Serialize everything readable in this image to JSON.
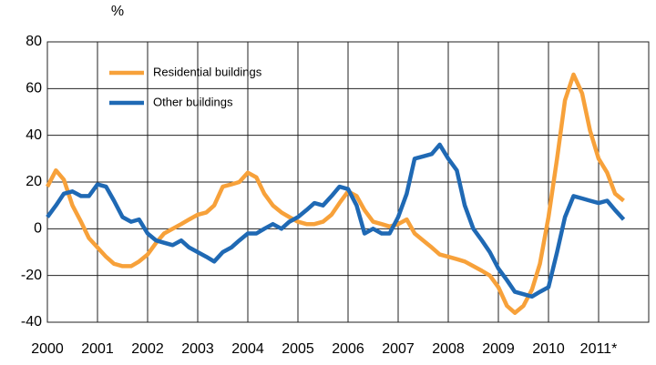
{
  "chart_data": {
    "type": "line",
    "y_label": "%",
    "x": [
      2000,
      2000.17,
      2000.33,
      2000.5,
      2000.67,
      2000.83,
      2001,
      2001.17,
      2001.33,
      2001.5,
      2001.67,
      2001.83,
      2002,
      2002.17,
      2002.33,
      2002.5,
      2002.67,
      2002.83,
      2003,
      2003.17,
      2003.33,
      2003.5,
      2003.67,
      2003.83,
      2004,
      2004.17,
      2004.33,
      2004.5,
      2004.67,
      2004.83,
      2005,
      2005.17,
      2005.33,
      2005.5,
      2005.67,
      2005.83,
      2006,
      2006.17,
      2006.33,
      2006.5,
      2006.67,
      2006.83,
      2007,
      2007.17,
      2007.33,
      2007.5,
      2007.67,
      2007.83,
      2008,
      2008.17,
      2008.33,
      2008.5,
      2008.67,
      2008.83,
      2009,
      2009.17,
      2009.33,
      2009.5,
      2009.67,
      2009.83,
      2010,
      2010.17,
      2010.33,
      2010.5,
      2010.67,
      2010.83,
      2011,
      2011.17,
      2011.33,
      2011.5
    ],
    "series": [
      {
        "name": "Residential buildings",
        "color": "#f7a13a",
        "values": [
          18,
          25,
          21,
          10,
          3,
          -4,
          -8,
          -12,
          -15,
          -16,
          -16,
          -14,
          -11,
          -6,
          -2,
          0,
          2,
          4,
          6,
          7,
          10,
          18,
          19,
          20,
          24,
          22,
          15,
          10,
          7,
          5,
          3,
          2,
          2,
          3,
          6,
          11,
          16,
          14,
          8,
          3,
          2,
          1,
          2,
          4,
          -2,
          -5,
          -8,
          -11,
          -12,
          -13,
          -14,
          -16,
          -18,
          -20,
          -25,
          -33,
          -36,
          -33,
          -26,
          -15,
          5,
          30,
          55,
          66,
          58,
          42,
          30,
          24,
          15,
          12
        ]
      },
      {
        "name": "Other buildings",
        "color": "#1f69b4",
        "values": [
          5,
          10,
          15,
          16,
          14,
          14,
          19,
          18,
          12,
          5,
          3,
          4,
          -2,
          -5,
          -6,
          -7,
          -5,
          -8,
          -10,
          -12,
          -14,
          -10,
          -8,
          -5,
          -2,
          -2,
          0,
          2,
          0,
          3,
          5,
          8,
          11,
          10,
          14,
          18,
          17,
          10,
          -2,
          0,
          -2,
          -2,
          5,
          15,
          30,
          31,
          32,
          36,
          30,
          25,
          10,
          0,
          -5,
          -10,
          -17,
          -22,
          -27,
          -28,
          -29,
          -27,
          -25,
          -10,
          5,
          14,
          13,
          12,
          11,
          12,
          8,
          4
        ]
      }
    ],
    "xlim": [
      2000,
      2012
    ],
    "xticks": [
      2000,
      2001,
      2002,
      2003,
      2004,
      2005,
      2006,
      2007,
      2008,
      2009,
      2010,
      {
        "value": 2011,
        "label": "2011*"
      }
    ],
    "ylim": [
      -40,
      80
    ],
    "yticks": [
      -40,
      -20,
      0,
      20,
      40,
      60,
      80
    ],
    "grid": true
  }
}
